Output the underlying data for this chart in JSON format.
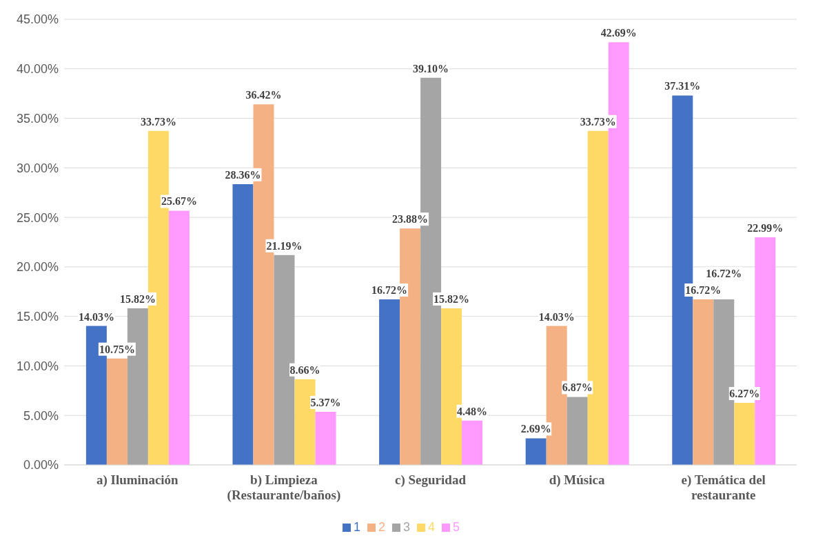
{
  "chart_data": {
    "type": "bar",
    "categories": [
      "a) Iluminación",
      "b) Limpieza (Restaurante/baños)",
      "c) Seguridad",
      "d) Música",
      "e) Temática del restaurante"
    ],
    "series": [
      {
        "name": "1",
        "color": "#4472c4",
        "values": [
          14.03,
          28.36,
          16.72,
          2.69,
          37.31
        ],
        "value_labels": [
          "14.03%",
          "28.36%",
          "16.72%",
          "2.69%",
          "37.31%"
        ]
      },
      {
        "name": "2",
        "color": "#f4b183",
        "values": [
          10.75,
          36.42,
          23.88,
          14.03,
          16.72
        ],
        "value_labels": [
          "10.75%",
          "36.42%",
          "23.88%",
          "14.03%",
          "16.72%"
        ]
      },
      {
        "name": "3",
        "color": "#a5a5a5",
        "values": [
          15.82,
          21.19,
          39.1,
          6.87,
          16.72
        ],
        "value_labels": [
          "15.82%",
          "21.19%",
          "39.10%",
          "6.87%",
          "16.72%"
        ]
      },
      {
        "name": "4",
        "color": "#ffd966",
        "values": [
          33.73,
          8.66,
          15.82,
          33.73,
          6.27
        ],
        "value_labels": [
          "33.73%",
          "8.66%",
          "15.82%",
          "33.73%",
          "6.27%"
        ]
      },
      {
        "name": "5",
        "color": "#ff99ff",
        "values": [
          25.67,
          5.37,
          4.48,
          42.69,
          22.99
        ],
        "value_labels": [
          "25.67%",
          "5.37%",
          "4.48%",
          "42.69%",
          "22.99%"
        ]
      }
    ],
    "ylim": [
      0,
      45
    ],
    "yticks": [
      {
        "value": 0,
        "label": "0.00%"
      },
      {
        "value": 5,
        "label": "5.00%"
      },
      {
        "value": 10,
        "label": "10.00%"
      },
      {
        "value": 15,
        "label": "15.00%"
      },
      {
        "value": 20,
        "label": "20.00%"
      },
      {
        "value": 25,
        "label": "25.00%"
      },
      {
        "value": 30,
        "label": "30.00%"
      },
      {
        "value": 35,
        "label": "35.00%"
      },
      {
        "value": 40,
        "label": "40.00%"
      },
      {
        "value": 45,
        "label": "45.00%"
      }
    ],
    "grid": "y",
    "legend": "bottom"
  }
}
